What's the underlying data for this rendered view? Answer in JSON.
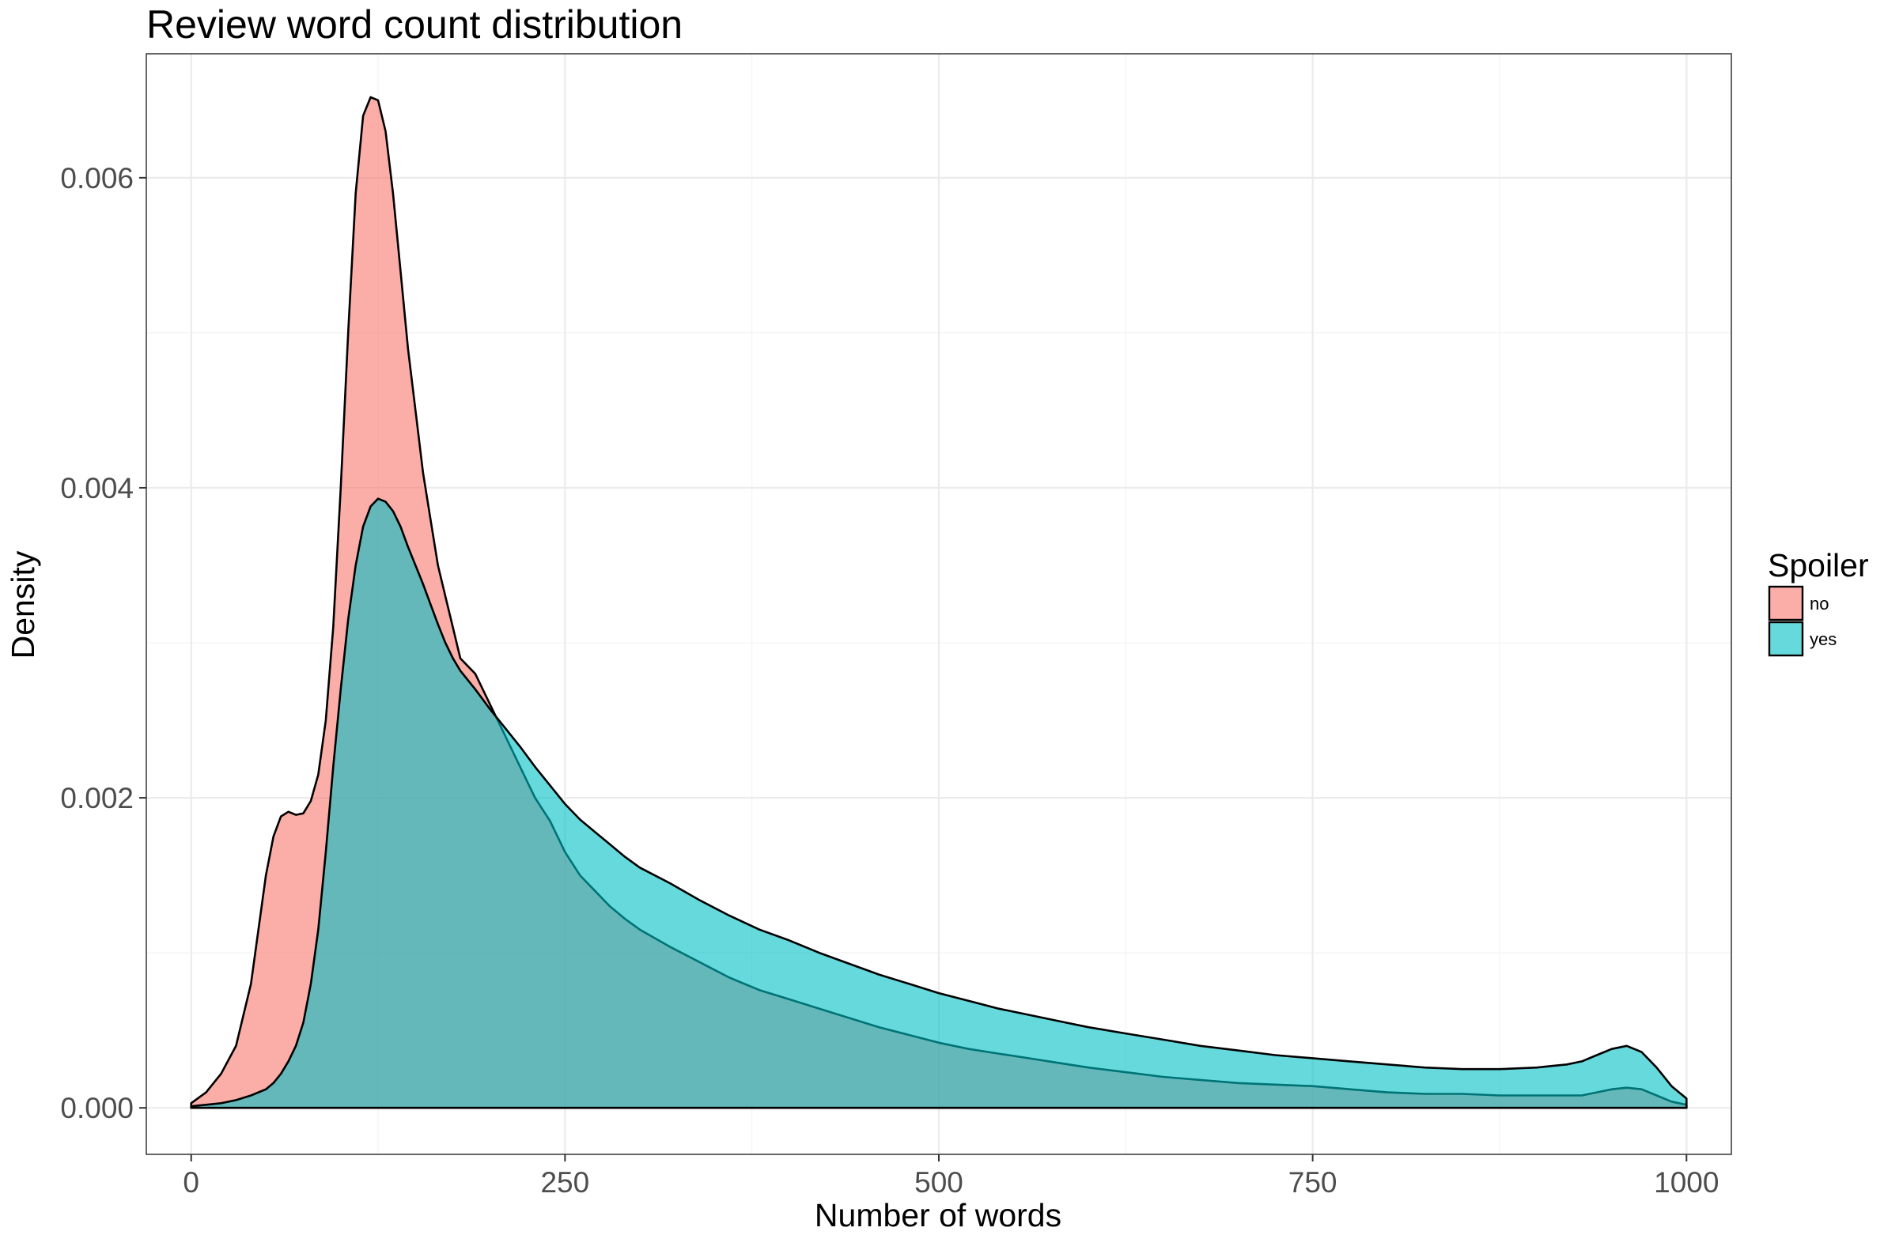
{
  "chart_data": {
    "type": "area",
    "subtype": "density",
    "title": "Review word count distribution",
    "xlabel": "Number of words",
    "ylabel": "Density",
    "xlim": [
      -30,
      1030
    ],
    "ylim": [
      -0.0003,
      0.0068
    ],
    "x_ticks": [
      0,
      250,
      500,
      750,
      1000
    ],
    "x_tick_labels": [
      "0",
      "250",
      "500",
      "750",
      "1000"
    ],
    "y_ticks": [
      0,
      0.002,
      0.004,
      0.006
    ],
    "y_tick_labels": [
      "0.000",
      "0.002",
      "0.004",
      "0.006"
    ],
    "grid": true,
    "legend": {
      "title": "Spoiler",
      "position": "right",
      "entries": [
        {
          "label": "no",
          "color": "#F8766D"
        },
        {
          "label": "yes",
          "color": "#00BFC4"
        }
      ]
    },
    "fill_alpha": 0.6,
    "x": [
      0,
      10,
      20,
      30,
      40,
      50,
      55,
      60,
      65,
      70,
      75,
      80,
      85,
      90,
      95,
      100,
      105,
      110,
      115,
      120,
      125,
      130,
      135,
      140,
      145,
      150,
      155,
      160,
      165,
      170,
      175,
      180,
      190,
      200,
      210,
      220,
      230,
      240,
      250,
      260,
      270,
      280,
      290,
      300,
      320,
      340,
      360,
      380,
      400,
      420,
      440,
      460,
      480,
      500,
      520,
      540,
      560,
      580,
      600,
      625,
      650,
      675,
      700,
      725,
      750,
      775,
      800,
      825,
      850,
      875,
      900,
      910,
      920,
      930,
      940,
      950,
      960,
      970,
      980,
      990,
      1000
    ],
    "series": [
      {
        "name": "no",
        "color": "#F8766D",
        "values": [
          3e-05,
          0.0001,
          0.00022,
          0.0004,
          0.0008,
          0.0015,
          0.00175,
          0.00188,
          0.00191,
          0.00189,
          0.0019,
          0.00198,
          0.00215,
          0.0025,
          0.0031,
          0.004,
          0.005,
          0.0059,
          0.0064,
          0.00652,
          0.0065,
          0.0063,
          0.0059,
          0.0054,
          0.0049,
          0.0045,
          0.0041,
          0.0038,
          0.0035,
          0.0033,
          0.0031,
          0.0029,
          0.0028,
          0.0026,
          0.0024,
          0.0022,
          0.002,
          0.00185,
          0.00165,
          0.0015,
          0.0014,
          0.0013,
          0.00122,
          0.00115,
          0.00104,
          0.00094,
          0.00084,
          0.00076,
          0.0007,
          0.00064,
          0.00058,
          0.00052,
          0.00047,
          0.00042,
          0.00038,
          0.00035,
          0.00032,
          0.00029,
          0.00026,
          0.00023,
          0.0002,
          0.00018,
          0.00016,
          0.00015,
          0.00014,
          0.00012,
          0.0001,
          9e-05,
          9e-05,
          8e-05,
          8e-05,
          8e-05,
          8e-05,
          8e-05,
          0.0001,
          0.00012,
          0.00013,
          0.00012,
          8e-05,
          4e-05,
          2e-05
        ]
      },
      {
        "name": "yes",
        "color": "#00BFC4",
        "values": [
          1e-05,
          2e-05,
          3e-05,
          5e-05,
          8e-05,
          0.00012,
          0.00016,
          0.00022,
          0.0003,
          0.0004,
          0.00055,
          0.0008,
          0.00115,
          0.00165,
          0.0022,
          0.0027,
          0.00315,
          0.0035,
          0.00375,
          0.00388,
          0.00393,
          0.00391,
          0.00385,
          0.00375,
          0.00362,
          0.0035,
          0.00338,
          0.00325,
          0.00312,
          0.003,
          0.0029,
          0.00282,
          0.0027,
          0.00257,
          0.00245,
          0.00233,
          0.0022,
          0.00208,
          0.00196,
          0.00186,
          0.00178,
          0.0017,
          0.00162,
          0.00155,
          0.00145,
          0.00134,
          0.00124,
          0.00115,
          0.00108,
          0.001,
          0.00093,
          0.00086,
          0.0008,
          0.00074,
          0.00069,
          0.00064,
          0.0006,
          0.00056,
          0.00052,
          0.00048,
          0.00044,
          0.0004,
          0.00037,
          0.00034,
          0.00032,
          0.0003,
          0.00028,
          0.00026,
          0.00025,
          0.00025,
          0.00026,
          0.00027,
          0.00028,
          0.0003,
          0.00034,
          0.00038,
          0.0004,
          0.00036,
          0.00026,
          0.00014,
          6e-05
        ]
      }
    ]
  }
}
